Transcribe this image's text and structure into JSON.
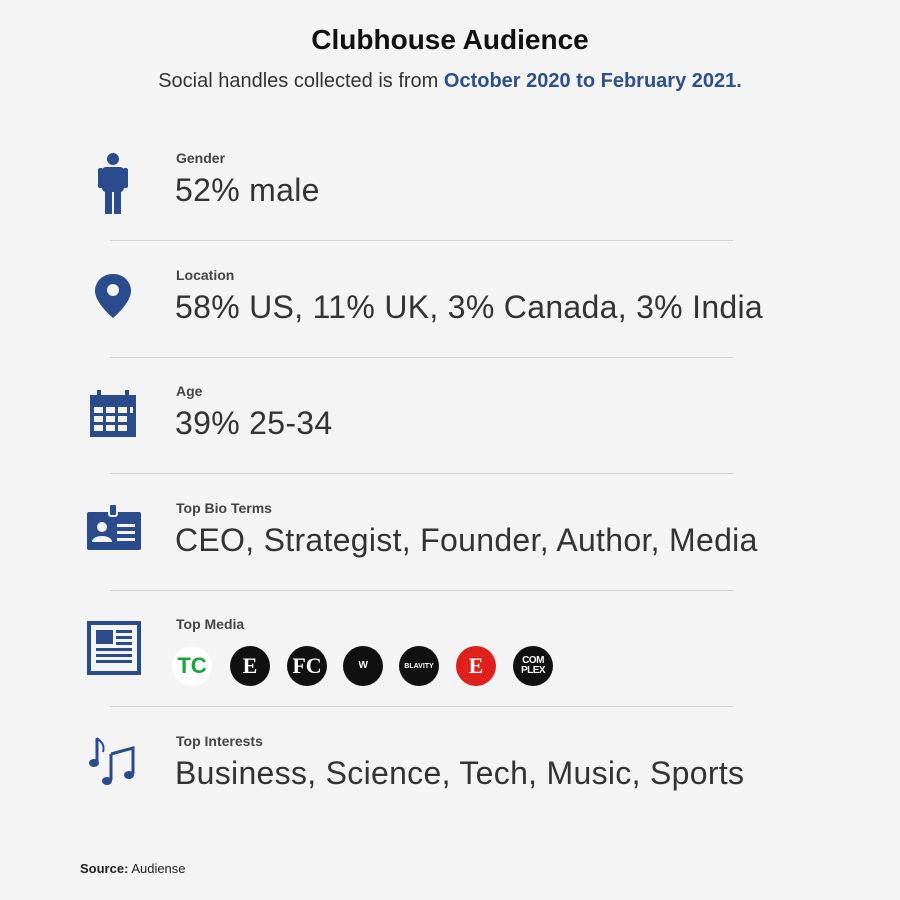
{
  "header": {
    "title": "Clubhouse Audience",
    "subtitle": "Social handles collected is from",
    "subtitle_highlight": "October 2020 to February 2021."
  },
  "rows": [
    {
      "label": "Gender",
      "value": "52% male"
    },
    {
      "label": "Location",
      "value": "58% US, 11% UK, 3% Canada, 3% India"
    },
    {
      "label": "Age",
      "value": "39% 25-34"
    },
    {
      "label": "Top Bio Terms",
      "value": "CEO, Strategist, Founder, Author, Media"
    },
    {
      "label": "Top Media",
      "logos": [
        [
          "TC"
        ],
        [
          "E"
        ],
        [
          "FC"
        ],
        [
          "W"
        ],
        [
          "BLAVITY"
        ],
        [
          "E"
        ],
        [
          "COM",
          "PLEX"
        ]
      ]
    },
    {
      "label": "Top Interests",
      "value": "Business, Science, Tech, Music, Sports"
    }
  ],
  "footer": {
    "source_label": "Source:",
    "source": "Audiense"
  }
}
